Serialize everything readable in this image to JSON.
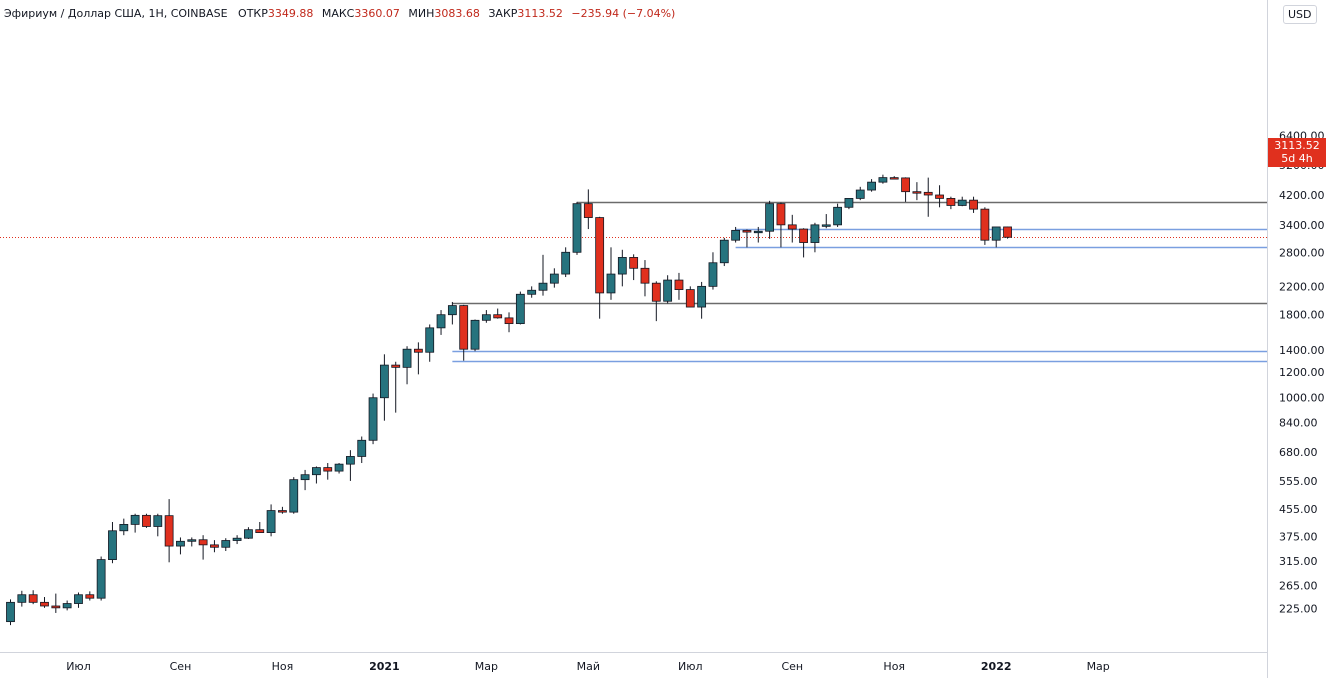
{
  "header": {
    "title": "Эфириум / Доллар США, 1Н, COINBASE",
    "open_label": "ОТКР",
    "open_value": "3349.88",
    "high_label": "МАКС",
    "high_value": "3360.07",
    "low_label": "МИН",
    "low_value": "3083.68",
    "close_label": "ЗАКР",
    "close_value": "3113.52",
    "change_value": "−235.94 (−7.04%)"
  },
  "currency": "USD",
  "price_label": {
    "price": "3113.52",
    "countdown": "5d 4h"
  },
  "colors": {
    "up": "#26737e",
    "down": "#e0301e",
    "wick": "#131722",
    "resistance": "#6b6b6b",
    "support": "#7a9fe0",
    "grid": "#d1d4dc"
  },
  "chart_data": {
    "type": "candlestick",
    "scale": "log",
    "y_ticks": [
      225,
      265,
      315,
      375,
      455,
      555,
      680,
      840,
      1000,
      1200,
      1400,
      1800,
      2200,
      2800,
      3400,
      4200,
      5200,
      6400
    ],
    "y_tick_labels": [
      "225.00",
      "265.00",
      "315.00",
      "375.00",
      "455.00",
      "555.00",
      "680.00",
      "840.00",
      "1000.00",
      "1200.00",
      "1400.00",
      "1800.00",
      "2200.00",
      "2800.00",
      "3400.00",
      "4200.00",
      "5200.00",
      "6400.00"
    ],
    "x_ticks": [
      {
        "label": "Июл",
        "index": 6
      },
      {
        "label": "Сен",
        "index": 15
      },
      {
        "label": "Ноя",
        "index": 24
      },
      {
        "label": "2021",
        "index": 33,
        "bold": true
      },
      {
        "label": "Мар",
        "index": 42
      },
      {
        "label": "Май",
        "index": 51
      },
      {
        "label": "Июл",
        "index": 60
      },
      {
        "label": "Сен",
        "index": 69
      },
      {
        "label": "Ноя",
        "index": 78
      },
      {
        "label": "2022",
        "index": 87,
        "bold": true
      },
      {
        "label": "Мар",
        "index": 96
      }
    ],
    "hlines": [
      {
        "value": 4000,
        "kind": "resistance"
      },
      {
        "value": 1950,
        "kind": "resistance"
      },
      {
        "value": 3300,
        "kind": "support"
      },
      {
        "value": 2900,
        "kind": "support"
      },
      {
        "value": 1390,
        "kind": "support"
      },
      {
        "value": 1300,
        "kind": "support"
      }
    ],
    "current_price": 3113.52,
    "candles": [
      {
        "o": 205,
        "h": 240,
        "l": 200,
        "c": 235
      },
      {
        "o": 235,
        "h": 255,
        "l": 228,
        "c": 248
      },
      {
        "o": 248,
        "h": 256,
        "l": 232,
        "c": 235
      },
      {
        "o": 235,
        "h": 244,
        "l": 226,
        "c": 229
      },
      {
        "o": 229,
        "h": 250,
        "l": 218,
        "c": 226
      },
      {
        "o": 226,
        "h": 238,
        "l": 222,
        "c": 233
      },
      {
        "o": 233,
        "h": 252,
        "l": 226,
        "c": 248
      },
      {
        "o": 248,
        "h": 254,
        "l": 238,
        "c": 242
      },
      {
        "o": 242,
        "h": 325,
        "l": 238,
        "c": 318
      },
      {
        "o": 318,
        "h": 415,
        "l": 310,
        "c": 390
      },
      {
        "o": 390,
        "h": 425,
        "l": 378,
        "c": 408
      },
      {
        "o": 408,
        "h": 440,
        "l": 385,
        "c": 435
      },
      {
        "o": 435,
        "h": 440,
        "l": 398,
        "c": 402
      },
      {
        "o": 402,
        "h": 440,
        "l": 375,
        "c": 434
      },
      {
        "o": 434,
        "h": 488,
        "l": 312,
        "c": 350
      },
      {
        "o": 350,
        "h": 372,
        "l": 330,
        "c": 362
      },
      {
        "o": 362,
        "h": 372,
        "l": 349,
        "c": 366
      },
      {
        "o": 366,
        "h": 378,
        "l": 318,
        "c": 353
      },
      {
        "o": 353,
        "h": 365,
        "l": 335,
        "c": 347
      },
      {
        "o": 347,
        "h": 370,
        "l": 338,
        "c": 364
      },
      {
        "o": 364,
        "h": 378,
        "l": 355,
        "c": 370
      },
      {
        "o": 370,
        "h": 400,
        "l": 368,
        "c": 393
      },
      {
        "o": 393,
        "h": 415,
        "l": 385,
        "c": 385
      },
      {
        "o": 385,
        "h": 470,
        "l": 375,
        "c": 450
      },
      {
        "o": 450,
        "h": 462,
        "l": 440,
        "c": 445
      },
      {
        "o": 445,
        "h": 570,
        "l": 440,
        "c": 560
      },
      {
        "o": 560,
        "h": 600,
        "l": 520,
        "c": 580
      },
      {
        "o": 580,
        "h": 615,
        "l": 545,
        "c": 610
      },
      {
        "o": 610,
        "h": 630,
        "l": 560,
        "c": 595
      },
      {
        "o": 595,
        "h": 630,
        "l": 585,
        "c": 625
      },
      {
        "o": 625,
        "h": 690,
        "l": 555,
        "c": 660
      },
      {
        "o": 660,
        "h": 760,
        "l": 630,
        "c": 740
      },
      {
        "o": 740,
        "h": 1030,
        "l": 720,
        "c": 1000
      },
      {
        "o": 1000,
        "h": 1360,
        "l": 850,
        "c": 1260
      },
      {
        "o": 1260,
        "h": 1290,
        "l": 900,
        "c": 1240
      },
      {
        "o": 1240,
        "h": 1440,
        "l": 1100,
        "c": 1410
      },
      {
        "o": 1410,
        "h": 1480,
        "l": 1180,
        "c": 1380
      },
      {
        "o": 1380,
        "h": 1680,
        "l": 1290,
        "c": 1640
      },
      {
        "o": 1640,
        "h": 1860,
        "l": 1560,
        "c": 1800
      },
      {
        "o": 1800,
        "h": 1970,
        "l": 1680,
        "c": 1920
      },
      {
        "o": 1920,
        "h": 1930,
        "l": 1300,
        "c": 1410
      },
      {
        "o": 1410,
        "h": 1740,
        "l": 1390,
        "c": 1730
      },
      {
        "o": 1730,
        "h": 1860,
        "l": 1700,
        "c": 1800
      },
      {
        "o": 1800,
        "h": 1880,
        "l": 1750,
        "c": 1760
      },
      {
        "o": 1760,
        "h": 1830,
        "l": 1590,
        "c": 1690
      },
      {
        "o": 1690,
        "h": 2120,
        "l": 1680,
        "c": 2080
      },
      {
        "o": 2080,
        "h": 2200,
        "l": 2030,
        "c": 2140
      },
      {
        "o": 2140,
        "h": 2750,
        "l": 2060,
        "c": 2250
      },
      {
        "o": 2250,
        "h": 2500,
        "l": 2180,
        "c": 2400
      },
      {
        "o": 2400,
        "h": 2900,
        "l": 2350,
        "c": 2800
      },
      {
        "o": 2800,
        "h": 4000,
        "l": 2750,
        "c": 3950
      },
      {
        "o": 3950,
        "h": 4370,
        "l": 3300,
        "c": 3580
      },
      {
        "o": 3580,
        "h": 3600,
        "l": 1750,
        "c": 2100
      },
      {
        "o": 2100,
        "h": 2900,
        "l": 2000,
        "c": 2400
      },
      {
        "o": 2400,
        "h": 2850,
        "l": 2200,
        "c": 2700
      },
      {
        "o": 2700,
        "h": 2760,
        "l": 2300,
        "c": 2500
      },
      {
        "o": 2500,
        "h": 2650,
        "l": 2050,
        "c": 2250
      },
      {
        "o": 2250,
        "h": 2280,
        "l": 1720,
        "c": 1980
      },
      {
        "o": 1980,
        "h": 2380,
        "l": 1950,
        "c": 2300
      },
      {
        "o": 2300,
        "h": 2420,
        "l": 2000,
        "c": 2150
      },
      {
        "o": 2150,
        "h": 2200,
        "l": 1900,
        "c": 1900
      },
      {
        "o": 1900,
        "h": 2270,
        "l": 1750,
        "c": 2200
      },
      {
        "o": 2200,
        "h": 2800,
        "l": 2150,
        "c": 2600
      },
      {
        "o": 2600,
        "h": 3100,
        "l": 2540,
        "c": 3050
      },
      {
        "o": 3050,
        "h": 3350,
        "l": 3000,
        "c": 3270
      },
      {
        "o": 3270,
        "h": 3290,
        "l": 2900,
        "c": 3230
      },
      {
        "o": 3230,
        "h": 3350,
        "l": 3000,
        "c": 3250
      },
      {
        "o": 3250,
        "h": 4030,
        "l": 3080,
        "c": 3950
      },
      {
        "o": 3950,
        "h": 3980,
        "l": 2900,
        "c": 3400
      },
      {
        "o": 3400,
        "h": 3650,
        "l": 3000,
        "c": 3300
      },
      {
        "o": 3300,
        "h": 3320,
        "l": 2700,
        "c": 3000
      },
      {
        "o": 3000,
        "h": 3450,
        "l": 2800,
        "c": 3400
      },
      {
        "o": 3400,
        "h": 3670,
        "l": 3320,
        "c": 3400
      },
      {
        "o": 3400,
        "h": 3950,
        "l": 3350,
        "c": 3850
      },
      {
        "o": 3850,
        "h": 4100,
        "l": 3800,
        "c": 4100
      },
      {
        "o": 4100,
        "h": 4450,
        "l": 4050,
        "c": 4350
      },
      {
        "o": 4350,
        "h": 4700,
        "l": 4300,
        "c": 4600
      },
      {
        "o": 4600,
        "h": 4850,
        "l": 4550,
        "c": 4750
      },
      {
        "o": 4750,
        "h": 4800,
        "l": 4700,
        "c": 4740
      },
      {
        "o": 4740,
        "h": 4760,
        "l": 4000,
        "c": 4300
      },
      {
        "o": 4300,
        "h": 4600,
        "l": 4050,
        "c": 4280
      },
      {
        "o": 4280,
        "h": 4750,
        "l": 3600,
        "c": 4200
      },
      {
        "o": 4200,
        "h": 4500,
        "l": 3850,
        "c": 4100
      },
      {
        "o": 4100,
        "h": 4150,
        "l": 3800,
        "c": 3900
      },
      {
        "o": 3900,
        "h": 4150,
        "l": 3880,
        "c": 4050
      },
      {
        "o": 4050,
        "h": 4150,
        "l": 3700,
        "c": 3800
      },
      {
        "o": 3800,
        "h": 3850,
        "l": 2950,
        "c": 3050
      },
      {
        "o": 3050,
        "h": 3350,
        "l": 2900,
        "c": 3350
      },
      {
        "o": 3350,
        "h": 3360,
        "l": 3084,
        "c": 3114
      }
    ]
  }
}
